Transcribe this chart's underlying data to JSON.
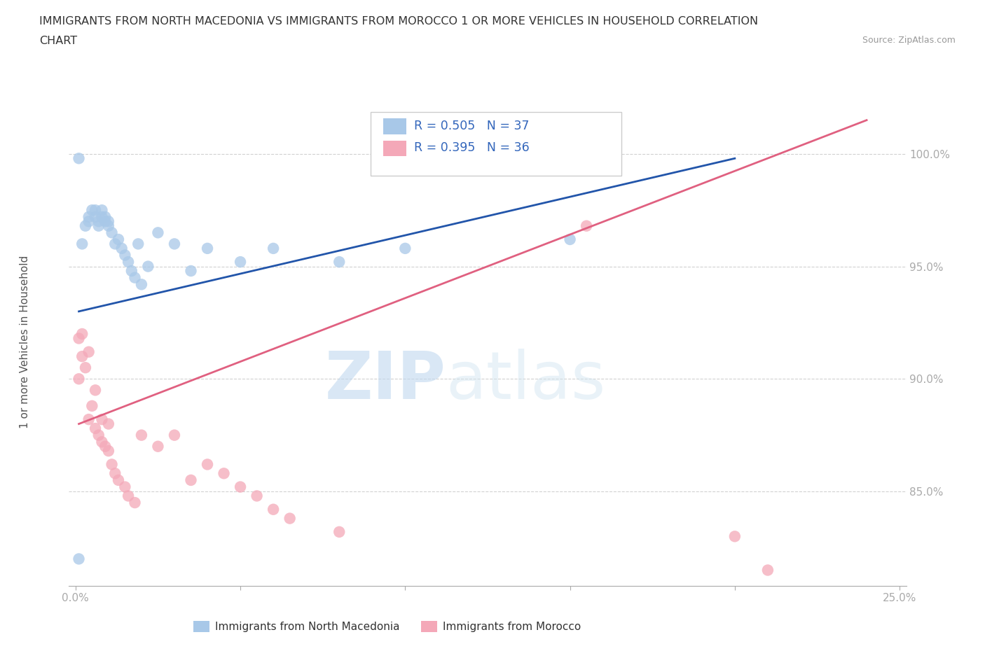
{
  "title_line1": "IMMIGRANTS FROM NORTH MACEDONIA VS IMMIGRANTS FROM MOROCCO 1 OR MORE VEHICLES IN HOUSEHOLD CORRELATION",
  "title_line2": "CHART",
  "source": "Source: ZipAtlas.com",
  "ylabel": "1 or more Vehicles in Household",
  "x_ticks": [
    0.0,
    0.05,
    0.1,
    0.15,
    0.2,
    0.25
  ],
  "x_tick_labels": [
    "0.0%",
    "",
    "",
    "",
    "",
    "25.0%"
  ],
  "y_ticks": [
    0.85,
    0.9,
    0.95,
    1.0
  ],
  "y_tick_labels": [
    "85.0%",
    "90.0%",
    "95.0%",
    "100.0%"
  ],
  "xlim": [
    -0.002,
    0.252
  ],
  "ylim": [
    0.808,
    1.025
  ],
  "blue_color": "#a8c8e8",
  "blue_line_color": "#2255aa",
  "pink_color": "#f4a8b8",
  "pink_line_color": "#e06080",
  "blue_R": 0.505,
  "blue_N": 37,
  "pink_R": 0.395,
  "pink_N": 36,
  "watermark_zip": "ZIP",
  "watermark_atlas": "atlas",
  "background_color": "#ffffff",
  "grid_color": "#cccccc",
  "blue_scatter_x": [
    0.001,
    0.002,
    0.003,
    0.004,
    0.004,
    0.005,
    0.006,
    0.006,
    0.007,
    0.007,
    0.008,
    0.008,
    0.009,
    0.009,
    0.01,
    0.01,
    0.011,
    0.012,
    0.013,
    0.014,
    0.015,
    0.016,
    0.017,
    0.018,
    0.019,
    0.02,
    0.022,
    0.025,
    0.03,
    0.035,
    0.04,
    0.05,
    0.06,
    0.08,
    0.1,
    0.15,
    0.001
  ],
  "blue_scatter_y": [
    0.82,
    0.96,
    0.968,
    0.97,
    0.972,
    0.975,
    0.972,
    0.975,
    0.968,
    0.97,
    0.972,
    0.975,
    0.97,
    0.972,
    0.968,
    0.97,
    0.965,
    0.96,
    0.962,
    0.958,
    0.955,
    0.952,
    0.948,
    0.945,
    0.96,
    0.942,
    0.95,
    0.965,
    0.96,
    0.948,
    0.958,
    0.952,
    0.958,
    0.952,
    0.958,
    0.962,
    0.998
  ],
  "pink_scatter_x": [
    0.001,
    0.001,
    0.002,
    0.002,
    0.003,
    0.004,
    0.004,
    0.005,
    0.006,
    0.006,
    0.007,
    0.008,
    0.008,
    0.009,
    0.01,
    0.01,
    0.011,
    0.012,
    0.013,
    0.015,
    0.016,
    0.018,
    0.02,
    0.025,
    0.03,
    0.035,
    0.04,
    0.045,
    0.05,
    0.055,
    0.06,
    0.065,
    0.08,
    0.155,
    0.2,
    0.21
  ],
  "pink_scatter_y": [
    0.9,
    0.918,
    0.91,
    0.92,
    0.905,
    0.912,
    0.882,
    0.888,
    0.878,
    0.895,
    0.875,
    0.872,
    0.882,
    0.87,
    0.868,
    0.88,
    0.862,
    0.858,
    0.855,
    0.852,
    0.848,
    0.845,
    0.875,
    0.87,
    0.875,
    0.855,
    0.862,
    0.858,
    0.852,
    0.848,
    0.842,
    0.838,
    0.832,
    0.968,
    0.83,
    0.815
  ],
  "blue_line_x": [
    0.001,
    0.2
  ],
  "blue_line_y": [
    0.93,
    0.998
  ],
  "pink_line_x": [
    0.001,
    0.24
  ],
  "pink_line_y": [
    0.88,
    1.015
  ],
  "legend_R_blue": "R = 0.505",
  "legend_N_blue": "N = 37",
  "legend_R_pink": "R = 0.395",
  "legend_N_pink": "N = 36",
  "bottom_label1": "Immigrants from North Macedonia",
  "bottom_label2": "Immigrants from Morocco"
}
